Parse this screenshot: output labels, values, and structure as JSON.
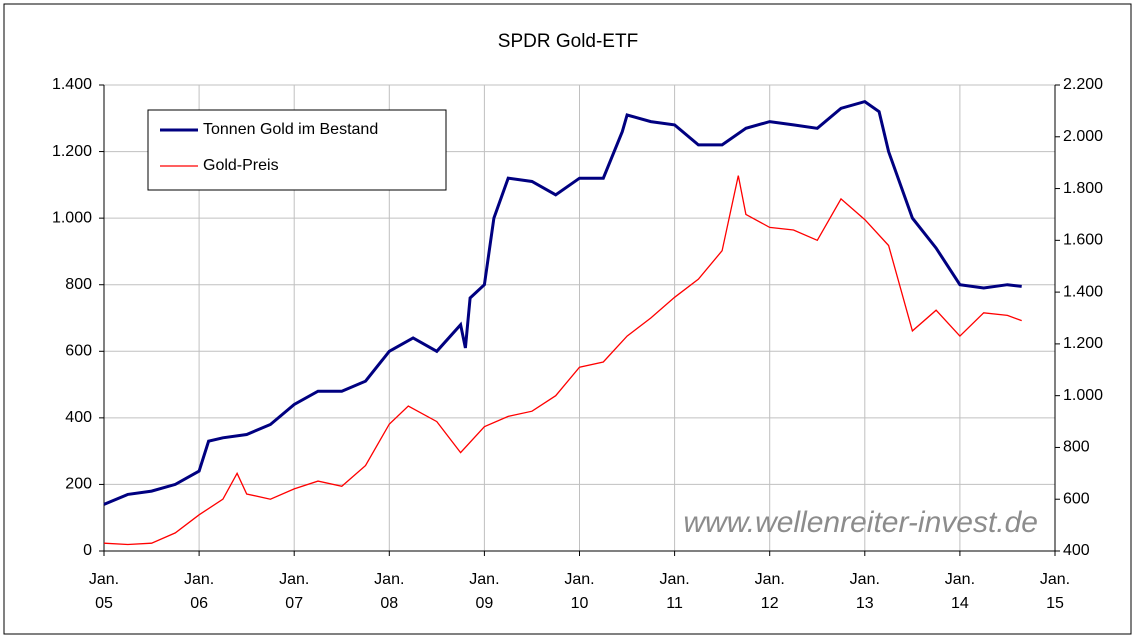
{
  "chart_data": {
    "type": "line",
    "title": "SPDR Gold-ETF",
    "annotation": "www.wellenreiter-invest.de",
    "xlim": [
      2005,
      2015
    ],
    "xticks": [
      {
        "value": 2005,
        "label": [
          "Jan.",
          "05"
        ]
      },
      {
        "value": 2006,
        "label": [
          "Jan.",
          "06"
        ]
      },
      {
        "value": 2007,
        "label": [
          "Jan.",
          "07"
        ]
      },
      {
        "value": 2008,
        "label": [
          "Jan.",
          "08"
        ]
      },
      {
        "value": 2009,
        "label": [
          "Jan.",
          "09"
        ]
      },
      {
        "value": 2010,
        "label": [
          "Jan.",
          "10"
        ]
      },
      {
        "value": 2011,
        "label": [
          "Jan.",
          "11"
        ]
      },
      {
        "value": 2012,
        "label": [
          "Jan.",
          "12"
        ]
      },
      {
        "value": 2013,
        "label": [
          "Jan.",
          "13"
        ]
      },
      {
        "value": 2014,
        "label": [
          "Jan.",
          "14"
        ]
      },
      {
        "value": 2015,
        "label": [
          "Jan.",
          "15"
        ]
      }
    ],
    "ylim": [
      0,
      1400
    ],
    "yticks": [
      0,
      200,
      400,
      600,
      800,
      {
        "value": 1000,
        "label": "1.000"
      },
      {
        "value": 1200,
        "label": "1.200"
      },
      {
        "value": 1400,
        "label": "1.400"
      }
    ],
    "y2lim": [
      400,
      2200
    ],
    "y2ticks": [
      400,
      600,
      800,
      {
        "value": 1000,
        "label": "1.000"
      },
      {
        "value": 1200,
        "label": "1.200"
      },
      {
        "value": 1400,
        "label": "1.400"
      },
      {
        "value": 1600,
        "label": "1.600"
      },
      {
        "value": 1800,
        "label": "1.800"
      },
      {
        "value": 2000,
        "label": "2.000"
      },
      {
        "value": 2200,
        "label": "2.200"
      }
    ],
    "grid": true,
    "legend": "upper left",
    "series": [
      {
        "name": "Tonnen Gold im Bestand",
        "color": "#000080",
        "axis": "y",
        "x": [
          2005.0,
          2005.25,
          2005.5,
          2005.75,
          2006.0,
          2006.1,
          2006.25,
          2006.5,
          2006.75,
          2007.0,
          2007.25,
          2007.5,
          2007.75,
          2008.0,
          2008.25,
          2008.5,
          2008.75,
          2008.8,
          2008.85,
          2009.0,
          2009.1,
          2009.25,
          2009.5,
          2009.75,
          2010.0,
          2010.25,
          2010.45,
          2010.5,
          2010.75,
          2011.0,
          2011.25,
          2011.5,
          2011.75,
          2012.0,
          2012.25,
          2012.5,
          2012.75,
          2013.0,
          2013.15,
          2013.25,
          2013.5,
          2013.75,
          2014.0,
          2014.25,
          2014.5,
          2014.65
        ],
        "values": [
          140,
          170,
          180,
          200,
          240,
          330,
          340,
          350,
          380,
          440,
          480,
          480,
          510,
          600,
          640,
          600,
          680,
          610,
          760,
          800,
          1000,
          1120,
          1110,
          1070,
          1120,
          1120,
          1260,
          1310,
          1290,
          1280,
          1220,
          1220,
          1270,
          1290,
          1280,
          1270,
          1330,
          1350,
          1320,
          1200,
          1000,
          910,
          800,
          790,
          800,
          795
        ]
      },
      {
        "name": "Gold-Preis",
        "color": "#ff0000",
        "axis": "y2",
        "x": [
          2005.0,
          2005.25,
          2005.5,
          2005.75,
          2006.0,
          2006.25,
          2006.4,
          2006.5,
          2006.75,
          2007.0,
          2007.25,
          2007.5,
          2007.75,
          2008.0,
          2008.2,
          2008.5,
          2008.75,
          2009.0,
          2009.25,
          2009.5,
          2009.75,
          2010.0,
          2010.25,
          2010.5,
          2010.75,
          2011.0,
          2011.25,
          2011.5,
          2011.67,
          2011.75,
          2012.0,
          2012.25,
          2012.5,
          2012.75,
          2013.0,
          2013.25,
          2013.5,
          2013.75,
          2014.0,
          2014.25,
          2014.5,
          2014.65
        ],
        "values": [
          430,
          425,
          430,
          470,
          540,
          600,
          700,
          620,
          600,
          640,
          670,
          650,
          730,
          890,
          960,
          900,
          780,
          880,
          920,
          940,
          1000,
          1110,
          1130,
          1230,
          1300,
          1380,
          1450,
          1560,
          1850,
          1700,
          1650,
          1640,
          1600,
          1760,
          1680,
          1580,
          1250,
          1330,
          1230,
          1320,
          1310,
          1290
        ]
      }
    ]
  }
}
